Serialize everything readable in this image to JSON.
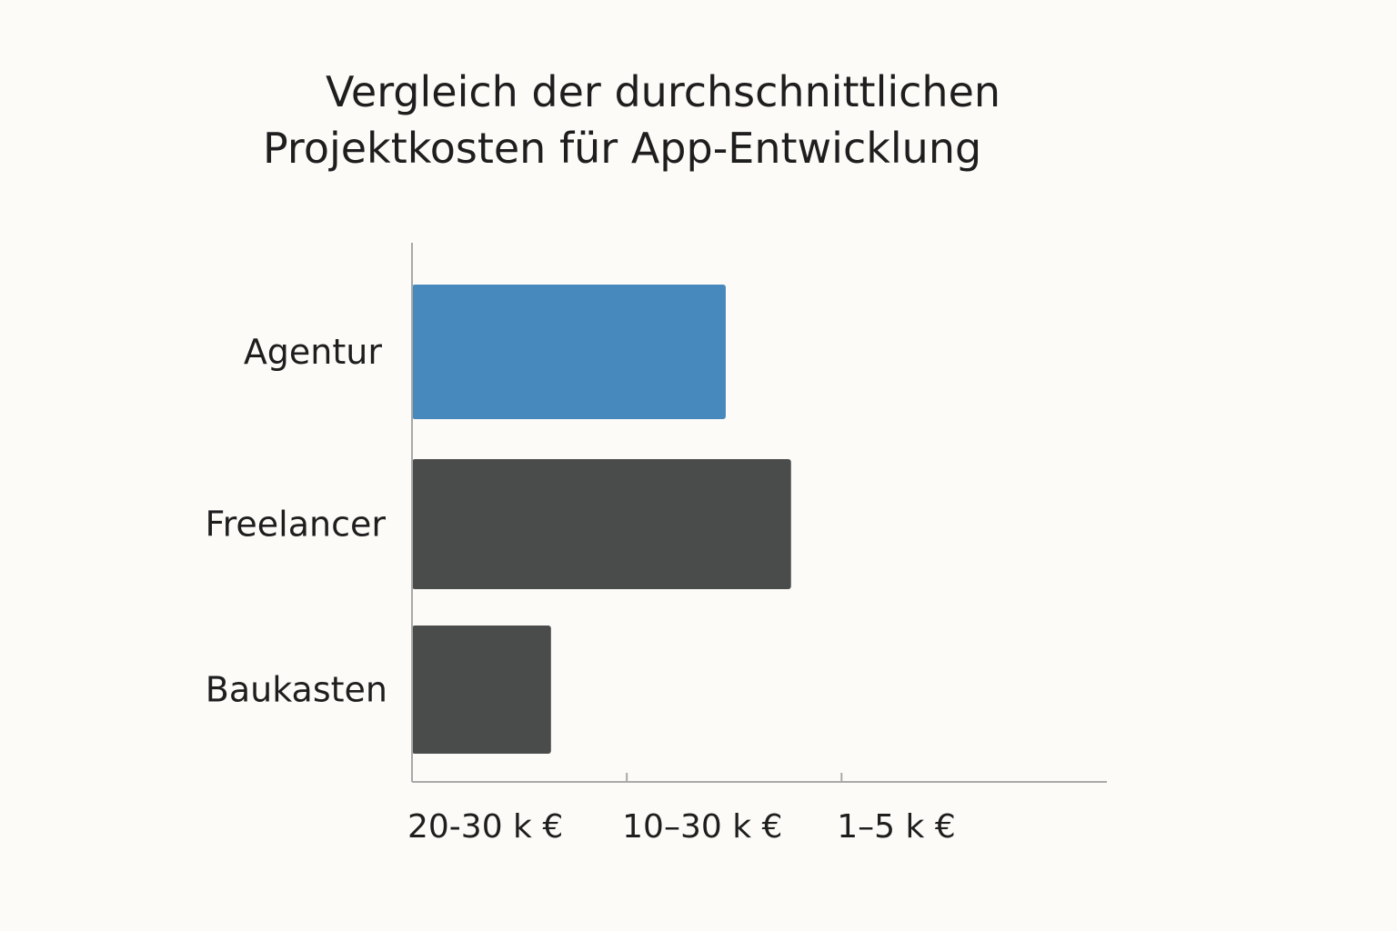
{
  "chart_data": {
    "type": "bar",
    "orientation": "horizontal",
    "title_lines": [
      "Vergleich der durchschnittlichen",
      "Projektkosten für App-Entwicklung"
    ],
    "categories": [
      "Agentur",
      "Freelancer",
      "Baukasten"
    ],
    "values": [
      14.9,
      18.0,
      6.6
    ],
    "xlim": [
      0,
      33
    ],
    "x_tick_labels": [
      {
        "value": 0,
        "label": "20-30 k €"
      },
      {
        "value": 10.2,
        "label": "10–30 k €"
      },
      {
        "value": 20.4,
        "label": "1–5 k €"
      }
    ],
    "grid": false,
    "legend": "none"
  },
  "colors": {
    "highlight_bar": "#4789bd",
    "default_bar": "#4a4b4b",
    "axis": "#a9a9a9",
    "text": "#1e1e1e"
  }
}
